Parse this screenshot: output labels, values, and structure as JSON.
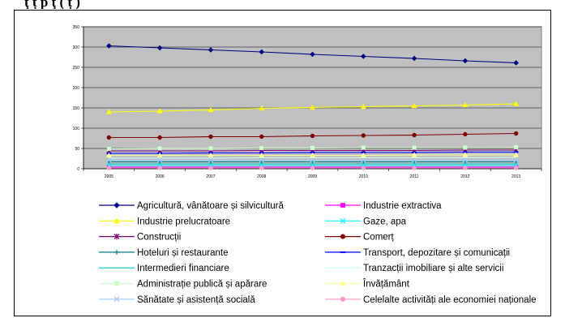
{
  "header": {
    "title": "ţ ț p ţ ( ț )"
  },
  "chart_data": {
    "type": "line",
    "title": "",
    "xlabel": "",
    "ylabel": "",
    "ylim": [
      0,
      350
    ],
    "yticks": [
      "0",
      "50",
      "100",
      "150",
      "200",
      "250",
      "300",
      "350"
    ],
    "x": [
      "2005",
      "2006",
      "2007",
      "2008",
      "2009",
      "2010",
      "2011",
      "2012",
      "2013"
    ],
    "grid": true,
    "plot_background": "#c0c0c0",
    "legend_position": "bottom",
    "series": [
      {
        "name": "Agricultură, vânătoare și silvicultură",
        "color": "#000080",
        "marker": "diamond",
        "values": [
          303,
          298,
          293,
          288,
          282,
          277,
          272,
          266,
          261
        ]
      },
      {
        "name": "Industrie extractiva",
        "color": "#ff00ff",
        "marker": "square",
        "values": [
          4,
          4,
          4,
          4,
          4,
          4,
          4,
          4,
          4
        ]
      },
      {
        "name": "Industrie prelucratoare",
        "color": "#ffff00",
        "marker": "triangle",
        "values": [
          140,
          142,
          145,
          149,
          151,
          153,
          155,
          157,
          160
        ]
      },
      {
        "name": "Gaze, apa",
        "color": "#00ffff",
        "marker": "x",
        "values": [
          8,
          8,
          8,
          8,
          8,
          8,
          8,
          8,
          8
        ]
      },
      {
        "name": "Construcții",
        "color": "#800080",
        "marker": "star",
        "values": [
          44,
          44,
          44,
          45,
          45,
          45,
          45,
          46,
          46
        ]
      },
      {
        "name": "Comerț",
        "color": "#800000",
        "marker": "circle",
        "values": [
          77,
          77,
          79,
          79,
          81,
          82,
          83,
          85,
          87
        ]
      },
      {
        "name": "Hoteluri și restaurante",
        "color": "#008080",
        "marker": "plus",
        "values": [
          17,
          17,
          17,
          17,
          17,
          17,
          17,
          17,
          17
        ]
      },
      {
        "name": "Transport, depozitare și comunicații",
        "color": "#0000ff",
        "marker": "dash",
        "values": [
          38,
          38,
          39,
          39,
          40,
          40,
          40,
          41,
          41
        ]
      },
      {
        "name": "Intermedieri financiare",
        "color": "#00cccc",
        "marker": "none",
        "values": [
          12,
          12,
          12,
          12,
          12,
          12,
          12,
          12,
          12
        ]
      },
      {
        "name": "Tranzacții imobiliare și alte servicii",
        "color": "#ccffff",
        "marker": "none",
        "values": [
          26,
          26,
          26,
          27,
          27,
          27,
          27,
          27,
          28
        ]
      },
      {
        "name": "Administrație publică și apărare",
        "color": "#ccffcc",
        "marker": "square",
        "values": [
          49,
          50,
          50,
          51,
          51,
          52,
          52,
          52,
          53
        ]
      },
      {
        "name": "Învățământ",
        "color": "#ffff99",
        "marker": "triangle",
        "values": [
          33,
          33,
          33,
          33,
          33,
          33,
          34,
          34,
          34
        ]
      },
      {
        "name": "Sănătate și asistență socială",
        "color": "#99ccff",
        "marker": "x",
        "values": [
          21,
          21,
          21,
          21,
          21,
          21,
          21,
          21,
          21
        ]
      },
      {
        "name": "Celelalte activități ale economiei naționale",
        "color": "#ff99cc",
        "marker": "circle",
        "values": [
          2,
          2,
          2,
          2,
          2,
          2,
          2,
          2,
          2
        ]
      }
    ]
  }
}
